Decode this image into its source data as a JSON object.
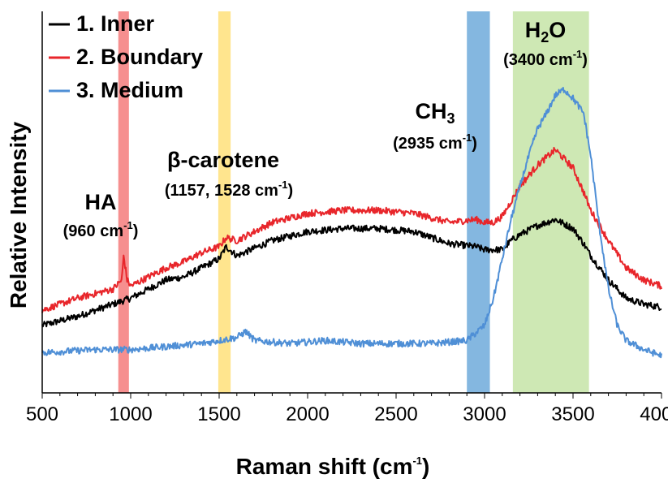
{
  "chart_data": {
    "type": "line",
    "xlabel": "Raman shift (cm",
    "xlabel_sup": "-1",
    "xlabel_close": ")",
    "ylabel": "Relative Intensity",
    "xlim": [
      500,
      4000
    ],
    "ylim": [
      0,
      100
    ],
    "x_ticks": [
      500,
      1000,
      1500,
      2000,
      2500,
      3000,
      3500,
      4000
    ],
    "legend_position": "top-left",
    "grid": false,
    "series": [
      {
        "name": "1. Inner",
        "color": "#000000",
        "x": [
          500,
          700,
          900,
          1000,
          1100,
          1200,
          1300,
          1400,
          1500,
          1540,
          1600,
          1800,
          2000,
          2200,
          2400,
          2600,
          2800,
          2950,
          3000,
          3100,
          3150,
          3200,
          3300,
          3400,
          3500,
          3560,
          3600,
          3700,
          3800,
          3900,
          4000
        ],
        "y": [
          18,
          21,
          25,
          27,
          30,
          33,
          34,
          37,
          40,
          44,
          41,
          46,
          49,
          50,
          50,
          49,
          45,
          44,
          43,
          43,
          46,
          48,
          51,
          53,
          50,
          45,
          41,
          33,
          27,
          25,
          24
        ]
      },
      {
        "name": "2. Boundary",
        "color": "#e8262b",
        "x": [
          500,
          700,
          900,
          950,
          960,
          980,
          1000,
          1100,
          1200,
          1300,
          1400,
          1500,
          1540,
          1600,
          1800,
          2000,
          2200,
          2400,
          2600,
          2800,
          2950,
          3000,
          3050,
          3100,
          3150,
          3200,
          3300,
          3400,
          3500,
          3560,
          3600,
          3700,
          3800,
          3900,
          4000
        ],
        "y": [
          23,
          27,
          30,
          33,
          41,
          33,
          31,
          34,
          37,
          39,
          42,
          44,
          47,
          46,
          52,
          55,
          56,
          56,
          55,
          52,
          53,
          52,
          52,
          54,
          59,
          64,
          71,
          76,
          70,
          62,
          56,
          46,
          37,
          33,
          31
        ]
      },
      {
        "name": "3. Medium",
        "color": "#4f8fd6",
        "x": [
          500,
          800,
          1000,
          1200,
          1400,
          1600,
          1650,
          1700,
          1900,
          2100,
          2300,
          2500,
          2700,
          2900,
          3000,
          3050,
          3100,
          3150,
          3200,
          3250,
          3300,
          3350,
          3400,
          3450,
          3500,
          3560,
          3600,
          3650,
          3700,
          3750,
          3800,
          3900,
          4000
        ],
        "y": [
          9,
          10,
          10,
          11,
          12,
          14,
          16,
          13,
          12,
          13,
          12,
          12,
          12,
          13,
          18,
          27,
          40,
          53,
          64,
          74,
          83,
          88,
          94,
          96,
          93,
          88,
          74,
          50,
          30,
          18,
          13,
          10,
          8
        ]
      }
    ],
    "bands": [
      {
        "label": "HA",
        "sub_prefix": "(960 cm",
        "sub_sup": "-1",
        "sub_suffix": ")",
        "x0": 930,
        "x1": 990,
        "color": "#f47b7b",
        "opacity": 0.85
      },
      {
        "label": "β-carotene",
        "sub_prefix": "(1157, 1528 cm",
        "sub_sup": "-1",
        "sub_suffix": ")",
        "x0": 1495,
        "x1": 1565,
        "color": "#ffe07a",
        "opacity": 0.85
      },
      {
        "label": "CH",
        "label_sub": "3",
        "sub_prefix": "(2935 cm",
        "sub_sup": "-1",
        "sub_suffix": ")",
        "x0": 2900,
        "x1": 3030,
        "color": "#5b9fd6",
        "opacity": 0.75
      },
      {
        "label": "H",
        "label_sub": "2",
        "label_tail": "O",
        "sub_prefix": "(3400 cm",
        "sub_sup": "-1",
        "sub_suffix": ")",
        "x0": 3160,
        "x1": 3590,
        "color": "#c6e4a7",
        "opacity": 0.85
      }
    ]
  }
}
